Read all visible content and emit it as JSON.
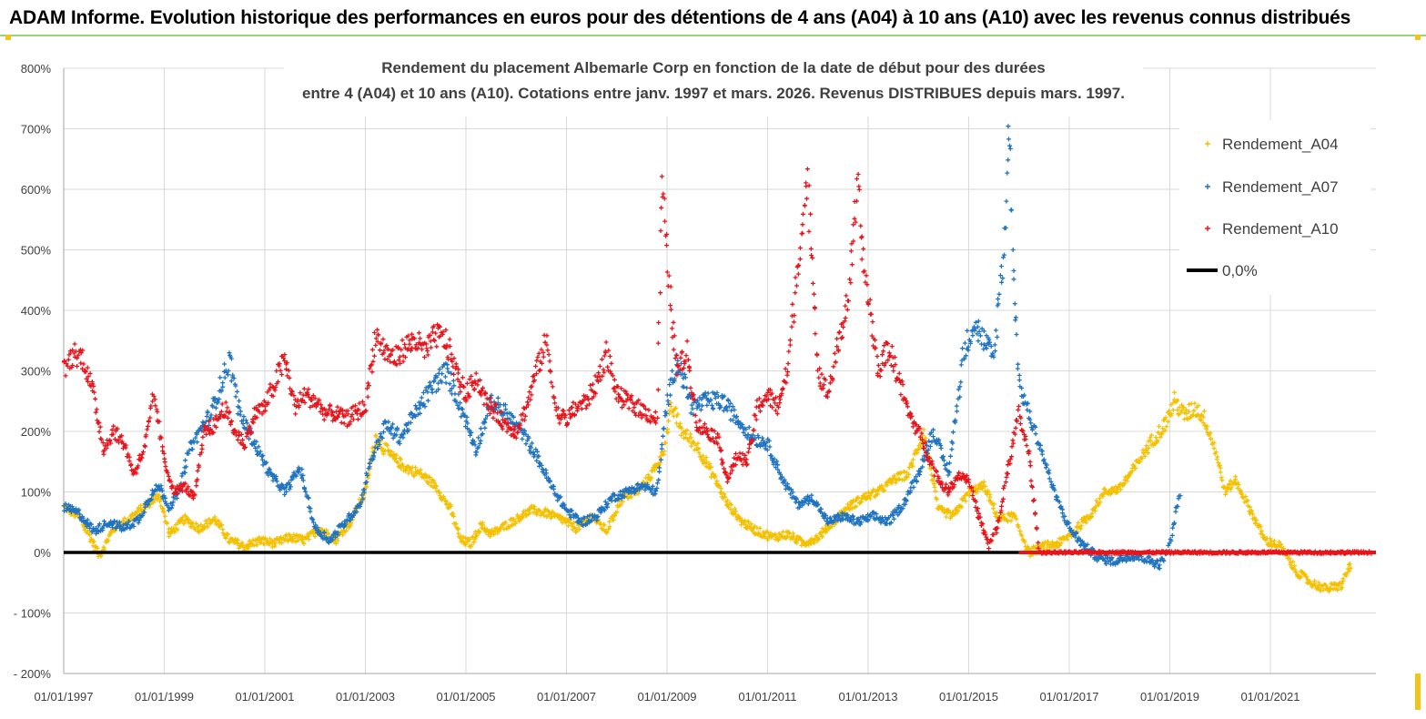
{
  "banner": {
    "title": "ADAM Informe. Evolution historique des performances en euros pour des détentions de 4 ans (A04) à 10 ans (A10) avec les revenus connus distribués"
  },
  "colors": {
    "a04": "#f5c000",
    "a07": "#1f73c0",
    "a10": "#e8141b",
    "zero": "#000000",
    "grid": "#d9d9d9",
    "axis_text": "#404040"
  },
  "chart_data": {
    "type": "scatter",
    "title_line1": "Rendement du placement Albemarle Corp en fonction de la date de début pour des durées",
    "title_line2": "entre 4 (A04) et 10 ans (A10). Cotations entre janv. 1997 et mars. 2026. Revenus DISTRIBUES depuis mars. 1997.",
    "x_range": [
      1997.0,
      2023.1
    ],
    "ylim": [
      -200,
      800
    ],
    "y_ticks": [
      800,
      700,
      600,
      500,
      400,
      300,
      200,
      100,
      0,
      -100,
      -200
    ],
    "y_tick_labels": [
      "800%",
      "700%",
      "600%",
      "500%",
      "400%",
      "300%",
      "200%",
      "100%",
      "0%",
      "- 100%",
      "- 200%"
    ],
    "x_ticks": [
      1997,
      1999,
      2001,
      2003,
      2005,
      2007,
      2009,
      2011,
      2013,
      2015,
      2017,
      2019,
      2021
    ],
    "x_tick_labels": [
      "01/01/1997",
      "01/01/1999",
      "01/01/2001",
      "01/01/2003",
      "01/01/2005",
      "01/01/2007",
      "01/01/2009",
      "01/01/2011",
      "01/01/2013",
      "01/01/2015",
      "01/01/2017",
      "01/01/2019",
      "01/01/2021"
    ],
    "legend": [
      "Rendement_A04",
      "Rendement_A07",
      "Rendement_A10",
      "0,0%"
    ],
    "legend_position": "top-right",
    "series": [
      {
        "name": "Rendement_A04",
        "x": [
          1997.0,
          1997.3,
          1997.5,
          1997.7,
          1998.0,
          1998.3,
          1998.6,
          1998.9,
          1999.1,
          1999.4,
          1999.7,
          2000.0,
          2000.3,
          2000.6,
          2000.9,
          2001.2,
          2001.5,
          2001.8,
          2002.1,
          2002.4,
          2002.7,
          2003.0,
          2003.2,
          2003.5,
          2003.8,
          2004.1,
          2004.4,
          2004.7,
          2004.9,
          2005.1,
          2005.3,
          2005.5,
          2005.8,
          2006.0,
          2006.3,
          2006.6,
          2006.9,
          2007.2,
          2007.5,
          2007.8,
          2008.1,
          2008.4,
          2008.7,
          2008.9,
          2009.1,
          2009.3,
          2009.6,
          2009.9,
          2010.2,
          2010.5,
          2010.8,
          2011.1,
          2011.4,
          2011.7,
          2012.0,
          2012.3,
          2012.6,
          2012.9,
          2013.2,
          2013.5,
          2013.8,
          2014.1,
          2014.4,
          2014.7,
          2015.0,
          2015.3,
          2015.6,
          2015.9,
          2016.2,
          2016.5,
          2016.8,
          2017.1,
          2017.4,
          2017.7,
          2018.0,
          2018.3,
          2018.6,
          2018.9,
          2019.1,
          2019.3,
          2019.5,
          2019.7,
          2019.9,
          2020.1,
          2020.3,
          2020.6,
          2020.9,
          2021.2,
          2021.5,
          2021.8,
          2022.1,
          2022.4,
          2022.6
        ],
        "values": [
          75,
          60,
          30,
          -5,
          40,
          55,
          75,
          95,
          30,
          55,
          40,
          55,
          20,
          10,
          20,
          15,
          25,
          20,
          40,
          20,
          50,
          100,
          190,
          160,
          140,
          130,
          110,
          70,
          20,
          15,
          45,
          30,
          45,
          55,
          70,
          65,
          55,
          40,
          60,
          35,
          90,
          100,
          130,
          160,
          240,
          200,
          175,
          130,
          80,
          50,
          35,
          25,
          30,
          15,
          25,
          50,
          75,
          90,
          100,
          120,
          130,
          200,
          70,
          60,
          100,
          110,
          55,
          60,
          0,
          10,
          15,
          35,
          60,
          100,
          105,
          140,
          180,
          210,
          250,
          225,
          240,
          220,
          170,
          100,
          120,
          70,
          20,
          10,
          -30,
          -50,
          -60,
          -55,
          -20
        ]
      },
      {
        "name": "Rendement_A07",
        "x": [
          1997.0,
          1997.3,
          1997.6,
          1997.9,
          1998.2,
          1998.5,
          1998.7,
          1998.9,
          1999.1,
          1999.3,
          1999.5,
          1999.7,
          1999.9,
          2000.1,
          2000.3,
          2000.5,
          2000.8,
          2001.1,
          2001.4,
          2001.7,
          2002.0,
          2002.3,
          2002.6,
          2002.9,
          2003.1,
          2003.4,
          2003.7,
          2004.0,
          2004.3,
          2004.6,
          2004.9,
          2005.2,
          2005.5,
          2005.8,
          2006.1,
          2006.4,
          2006.7,
          2007.0,
          2007.3,
          2007.6,
          2007.9,
          2008.2,
          2008.5,
          2008.8,
          2009.0,
          2009.2,
          2009.5,
          2009.8,
          2010.1,
          2010.4,
          2010.7,
          2011.0,
          2011.3,
          2011.6,
          2011.9,
          2012.2,
          2012.5,
          2012.8,
          2013.1,
          2013.4,
          2013.7,
          2014.0,
          2014.3,
          2014.6,
          2014.9,
          2015.1,
          2015.3,
          2015.5,
          2015.6,
          2015.7,
          2015.8,
          2015.9,
          2016.0,
          2016.2,
          2016.4,
          2016.7,
          2017.0,
          2017.3,
          2017.6,
          2017.9,
          2018.2,
          2018.5,
          2018.8,
          2019.0,
          2019.2
        ],
        "values": [
          75,
          65,
          35,
          50,
          40,
          55,
          90,
          110,
          75,
          100,
          170,
          200,
          225,
          270,
          320,
          230,
          180,
          130,
          100,
          140,
          40,
          20,
          50,
          80,
          150,
          210,
          190,
          230,
          270,
          300,
          240,
          170,
          250,
          230,
          200,
          160,
          110,
          70,
          50,
          60,
          90,
          100,
          110,
          100,
          250,
          320,
          240,
          250,
          250,
          220,
          190,
          180,
          120,
          80,
          90,
          50,
          60,
          50,
          60,
          50,
          80,
          130,
          200,
          130,
          330,
          380,
          350,
          320,
          420,
          500,
          710,
          450,
          280,
          230,
          180,
          100,
          40,
          10,
          -10,
          -15,
          -5,
          -10,
          -20,
          10,
          100
        ]
      },
      {
        "name": "Rendement_A10",
        "x": [
          1997.0,
          1997.2,
          1997.4,
          1997.6,
          1997.8,
          1998.0,
          1998.2,
          1998.4,
          1998.6,
          1998.8,
          1999.0,
          1999.2,
          1999.4,
          1999.6,
          1999.8,
          2000.0,
          2000.2,
          2000.4,
          2000.6,
          2000.8,
          2001.0,
          2001.2,
          2001.4,
          2001.6,
          2001.8,
          2002.0,
          2002.2,
          2002.4,
          2002.6,
          2002.8,
          2003.0,
          2003.2,
          2003.4,
          2003.6,
          2003.8,
          2004.0,
          2004.2,
          2004.4,
          2004.6,
          2004.8,
          2005.0,
          2005.2,
          2005.4,
          2005.6,
          2005.8,
          2006.0,
          2006.2,
          2006.4,
          2006.6,
          2006.8,
          2007.0,
          2007.2,
          2007.4,
          2007.6,
          2007.8,
          2008.0,
          2008.2,
          2008.4,
          2008.6,
          2008.8,
          2008.9,
          2009.0,
          2009.2,
          2009.4,
          2009.6,
          2009.8,
          2010.0,
          2010.2,
          2010.4,
          2010.6,
          2010.8,
          2011.0,
          2011.2,
          2011.4,
          2011.6,
          2011.8,
          2011.9,
          2012.0,
          2012.2,
          2012.4,
          2012.6,
          2012.8,
          2012.9,
          2013.0,
          2013.2,
          2013.4,
          2013.6,
          2013.8,
          2014.0,
          2014.2,
          2014.4,
          2014.6,
          2014.8,
          2015.0,
          2015.2,
          2015.4,
          2015.6,
          2015.8,
          2016.0,
          2016.2,
          2016.4,
          2016.6,
          2016.8,
          2017.0,
          2017.5,
          2018.0,
          2018.5,
          2019.0,
          2019.5,
          2020.0,
          2020.5,
          2021.0,
          2021.5,
          2022.0,
          2022.5,
          2023.0
        ],
        "values": [
          300,
          330,
          320,
          260,
          170,
          200,
          180,
          130,
          170,
          260,
          150,
          100,
          110,
          90,
          200,
          210,
          240,
          200,
          180,
          230,
          240,
          280,
          320,
          240,
          260,
          250,
          230,
          230,
          220,
          230,
          240,
          360,
          330,
          320,
          340,
          350,
          330,
          360,
          350,
          300,
          260,
          290,
          250,
          230,
          210,
          200,
          240,
          300,
          350,
          230,
          220,
          240,
          250,
          280,
          330,
          260,
          250,
          240,
          230,
          220,
          620,
          480,
          300,
          330,
          210,
          200,
          190,
          120,
          160,
          150,
          240,
          260,
          240,
          300,
          480,
          600,
          470,
          300,
          260,
          340,
          420,
          600,
          480,
          420,
          300,
          340,
          290,
          230,
          200,
          160,
          120,
          100,
          130,
          120,
          60,
          10,
          50,
          150,
          230,
          160,
          0,
          0,
          0,
          0,
          0,
          0,
          0,
          0,
          0,
          0,
          0,
          0,
          0,
          0,
          0,
          0
        ]
      }
    ]
  }
}
